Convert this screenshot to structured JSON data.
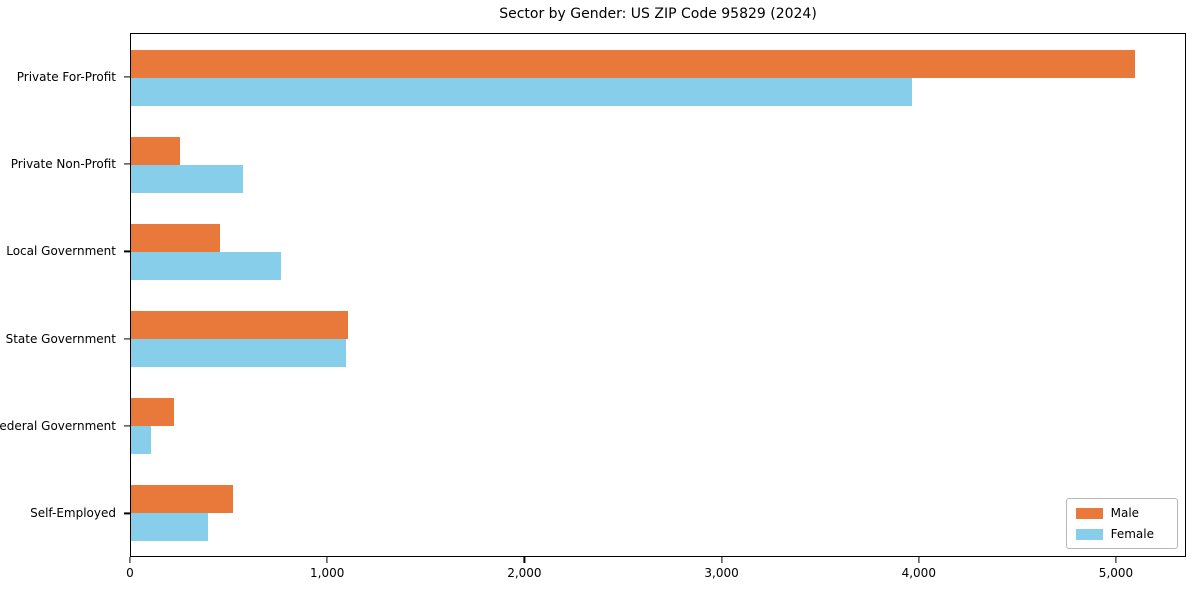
{
  "chart_data": {
    "type": "bar",
    "orientation": "horizontal",
    "title": "Sector by Gender: US ZIP Code 95829 (2024)",
    "categories": [
      "Private For-Profit",
      "Private Non-Profit",
      "Local Government",
      "State Government",
      "Federal Government",
      "Self-Employed"
    ],
    "series": [
      {
        "name": "Male",
        "color": "#E8793B",
        "values": [
          5100,
          250,
          450,
          1100,
          220,
          520
        ]
      },
      {
        "name": "Female",
        "color": "#87CEEB",
        "values": [
          3970,
          570,
          760,
          1090,
          100,
          390
        ]
      }
    ],
    "xlabel": "",
    "ylabel": "",
    "xlim": [
      0,
      5355
    ],
    "xticks": [
      0,
      1000,
      2000,
      3000,
      4000,
      5000
    ],
    "xtick_labels": [
      "0",
      "1,000",
      "2,000",
      "3,000",
      "4,000",
      "5,000"
    ],
    "grid": false,
    "legend_position": "lower right"
  }
}
